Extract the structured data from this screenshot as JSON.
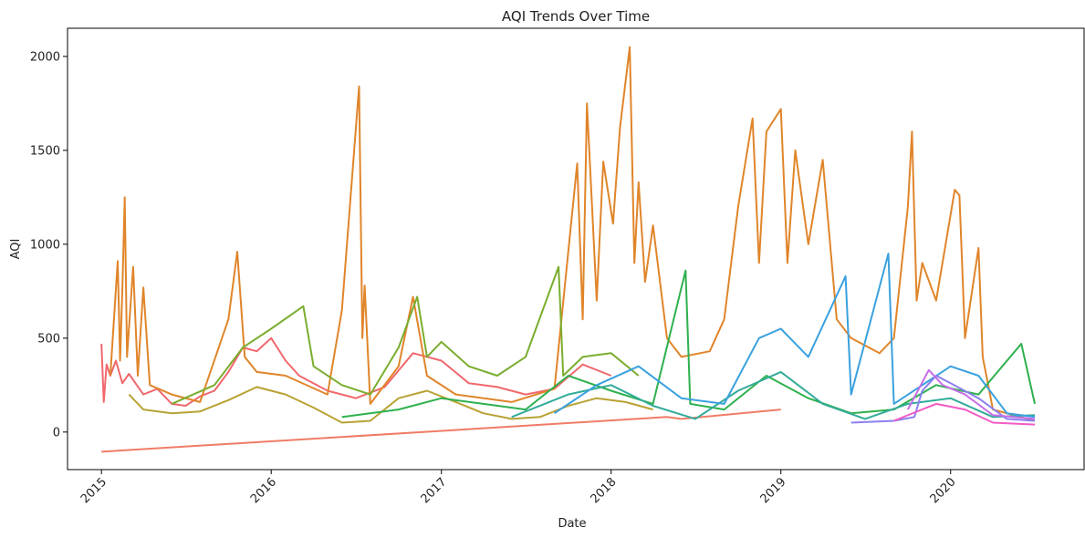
{
  "chart_data": {
    "type": "line",
    "title": "AQI Trends Over Time",
    "xlabel": "Date",
    "ylabel": "AQI",
    "x_ticks": [
      "2015",
      "2016",
      "2017",
      "2018",
      "2019",
      "2020"
    ],
    "y_ticks": [
      0,
      500,
      1000,
      1500,
      2000
    ],
    "xlim": [
      "2014-10-20",
      "2020-10-14"
    ],
    "ylim": [
      -200,
      2150
    ],
    "grid": false,
    "legend": "none",
    "series": [
      {
        "color": "#f0686d",
        "points": [
          [
            "2015-01-01",
            470
          ],
          [
            "2015-01-06",
            160
          ],
          [
            "2015-01-12",
            360
          ],
          [
            "2015-01-20",
            300
          ],
          [
            "2015-02-01",
            380
          ],
          [
            "2015-02-15",
            260
          ],
          [
            "2015-03-01",
            310
          ],
          [
            "2015-04-01",
            200
          ],
          [
            "2015-05-01",
            230
          ],
          [
            "2015-06-01",
            150
          ],
          [
            "2015-07-01",
            140
          ],
          [
            "2015-08-01",
            190
          ],
          [
            "2015-09-01",
            220
          ],
          [
            "2015-10-01",
            320
          ],
          [
            "2015-11-01",
            450
          ],
          [
            "2015-12-01",
            430
          ],
          [
            "2016-01-01",
            500
          ],
          [
            "2016-02-01",
            380
          ],
          [
            "2016-03-01",
            300
          ],
          [
            "2016-05-01",
            220
          ],
          [
            "2016-07-01",
            180
          ],
          [
            "2016-09-01",
            240
          ],
          [
            "2016-11-01",
            420
          ],
          [
            "2017-01-01",
            380
          ],
          [
            "2017-03-01",
            260
          ],
          [
            "2017-05-01",
            240
          ],
          [
            "2017-07-01",
            200
          ],
          [
            "2017-09-01",
            230
          ],
          [
            "2017-11-01",
            360
          ],
          [
            "2018-01-01",
            300
          ]
        ]
      },
      {
        "color": "#f07c66",
        "points": [
          [
            "2015-01-01",
            -105
          ],
          [
            "2018-05-01",
            80
          ],
          [
            "2018-06-01",
            70
          ],
          [
            "2019-01-01",
            120
          ]
        ]
      },
      {
        "color": "#e0852a",
        "points": [
          [
            "2015-01-20",
            300
          ],
          [
            "2015-02-05",
            910
          ],
          [
            "2015-02-10",
            380
          ],
          [
            "2015-02-15",
            760
          ],
          [
            "2015-02-20",
            1250
          ],
          [
            "2015-02-25",
            400
          ],
          [
            "2015-03-10",
            880
          ],
          [
            "2015-03-20",
            300
          ],
          [
            "2015-04-01",
            770
          ],
          [
            "2015-04-15",
            250
          ],
          [
            "2015-06-01",
            200
          ],
          [
            "2015-08-01",
            160
          ],
          [
            "2015-10-01",
            600
          ],
          [
            "2015-10-20",
            960
          ],
          [
            "2015-11-05",
            400
          ],
          [
            "2015-12-01",
            320
          ],
          [
            "2016-02-01",
            300
          ],
          [
            "2016-05-01",
            200
          ],
          [
            "2016-06-01",
            650
          ],
          [
            "2016-07-08",
            1840
          ],
          [
            "2016-07-15",
            500
          ],
          [
            "2016-07-20",
            780
          ],
          [
            "2016-08-01",
            150
          ],
          [
            "2016-10-01",
            350
          ],
          [
            "2016-11-01",
            720
          ],
          [
            "2016-12-01",
            300
          ],
          [
            "2017-02-01",
            200
          ],
          [
            "2017-06-01",
            160
          ],
          [
            "2017-09-01",
            230
          ],
          [
            "2017-10-20",
            1430
          ],
          [
            "2017-11-01",
            600
          ],
          [
            "2017-11-10",
            1750
          ],
          [
            "2017-12-01",
            700
          ],
          [
            "2017-12-15",
            1440
          ],
          [
            "2018-01-05",
            1110
          ],
          [
            "2018-01-20",
            1620
          ],
          [
            "2018-02-10",
            2050
          ],
          [
            "2018-02-20",
            900
          ],
          [
            "2018-03-01",
            1330
          ],
          [
            "2018-03-15",
            800
          ],
          [
            "2018-04-01",
            1100
          ],
          [
            "2018-05-01",
            500
          ],
          [
            "2018-06-01",
            400
          ],
          [
            "2018-08-01",
            430
          ],
          [
            "2018-09-01",
            600
          ],
          [
            "2018-10-01",
            1200
          ],
          [
            "2018-11-01",
            1670
          ],
          [
            "2018-11-15",
            900
          ],
          [
            "2018-12-01",
            1600
          ],
          [
            "2019-01-01",
            1720
          ],
          [
            "2019-01-15",
            900
          ],
          [
            "2019-02-01",
            1500
          ],
          [
            "2019-03-01",
            1000
          ],
          [
            "2019-04-01",
            1450
          ],
          [
            "2019-05-01",
            600
          ],
          [
            "2019-06-01",
            500
          ],
          [
            "2019-08-01",
            420
          ],
          [
            "2019-09-01",
            500
          ],
          [
            "2019-10-01",
            1200
          ],
          [
            "2019-10-10",
            1600
          ],
          [
            "2019-10-20",
            700
          ],
          [
            "2019-11-01",
            900
          ],
          [
            "2019-12-01",
            700
          ],
          [
            "2020-01-10",
            1290
          ],
          [
            "2020-01-20",
            1260
          ],
          [
            "2020-02-01",
            500
          ],
          [
            "2020-03-01",
            980
          ],
          [
            "2020-03-10",
            400
          ],
          [
            "2020-04-01",
            120
          ],
          [
            "2020-06-30",
            60
          ]
        ]
      },
      {
        "color": "#b8a234",
        "points": [
          [
            "2015-03-01",
            200
          ],
          [
            "2015-04-01",
            120
          ],
          [
            "2015-06-01",
            100
          ],
          [
            "2015-08-01",
            110
          ],
          [
            "2015-10-01",
            170
          ],
          [
            "2015-12-01",
            240
          ],
          [
            "2016-02-01",
            200
          ],
          [
            "2016-04-01",
            130
          ],
          [
            "2016-06-01",
            50
          ],
          [
            "2016-08-01",
            60
          ],
          [
            "2016-10-01",
            180
          ],
          [
            "2016-12-01",
            220
          ],
          [
            "2017-02-01",
            160
          ],
          [
            "2017-04-01",
            100
          ],
          [
            "2017-06-01",
            70
          ],
          [
            "2017-08-01",
            80
          ],
          [
            "2017-10-01",
            140
          ],
          [
            "2017-12-01",
            180
          ],
          [
            "2018-02-01",
            160
          ],
          [
            "2018-04-01",
            120
          ]
        ]
      },
      {
        "color": "#7aad2f",
        "points": [
          [
            "2015-06-01",
            150
          ],
          [
            "2015-09-01",
            250
          ],
          [
            "2015-11-01",
            450
          ],
          [
            "2016-01-01",
            550
          ],
          [
            "2016-03-10",
            670
          ],
          [
            "2016-04-01",
            350
          ],
          [
            "2016-06-01",
            250
          ],
          [
            "2016-08-01",
            200
          ],
          [
            "2016-10-01",
            450
          ],
          [
            "2016-11-10",
            720
          ],
          [
            "2016-12-01",
            400
          ],
          [
            "2017-01-01",
            480
          ],
          [
            "2017-03-01",
            350
          ],
          [
            "2017-05-01",
            300
          ],
          [
            "2017-07-01",
            400
          ],
          [
            "2017-09-10",
            880
          ],
          [
            "2017-09-20",
            300
          ],
          [
            "2017-11-01",
            400
          ],
          [
            "2018-01-01",
            420
          ],
          [
            "2018-03-01",
            300
          ]
        ]
      },
      {
        "color": "#2eb04e",
        "points": [
          [
            "2016-06-01",
            80
          ],
          [
            "2016-10-01",
            120
          ],
          [
            "2017-01-01",
            180
          ],
          [
            "2017-04-01",
            150
          ],
          [
            "2017-07-01",
            120
          ],
          [
            "2017-10-01",
            300
          ],
          [
            "2018-01-01",
            220
          ],
          [
            "2018-04-01",
            150
          ],
          [
            "2018-06-10",
            860
          ],
          [
            "2018-06-20",
            150
          ],
          [
            "2018-09-01",
            120
          ],
          [
            "2018-12-01",
            300
          ],
          [
            "2019-03-01",
            180
          ],
          [
            "2019-06-01",
            100
          ],
          [
            "2019-09-01",
            120
          ],
          [
            "2019-12-01",
            250
          ],
          [
            "2020-03-01",
            200
          ],
          [
            "2020-06-01",
            470
          ],
          [
            "2020-06-30",
            150
          ]
        ]
      },
      {
        "color": "#33ab9a",
        "points": [
          [
            "2017-06-01",
            80
          ],
          [
            "2017-10-01",
            200
          ],
          [
            "2018-01-01",
            250
          ],
          [
            "2018-04-01",
            140
          ],
          [
            "2018-07-01",
            70
          ],
          [
            "2018-10-01",
            220
          ],
          [
            "2019-01-01",
            320
          ],
          [
            "2019-04-01",
            150
          ],
          [
            "2019-07-01",
            70
          ],
          [
            "2019-10-01",
            150
          ],
          [
            "2020-01-01",
            180
          ],
          [
            "2020-04-01",
            80
          ],
          [
            "2020-06-30",
            90
          ]
        ]
      },
      {
        "color": "#3aa1de",
        "points": [
          [
            "2017-09-01",
            100
          ],
          [
            "2017-12-01",
            250
          ],
          [
            "2018-03-01",
            350
          ],
          [
            "2018-06-01",
            180
          ],
          [
            "2018-09-01",
            150
          ],
          [
            "2018-11-15",
            500
          ],
          [
            "2019-01-01",
            550
          ],
          [
            "2019-03-01",
            400
          ],
          [
            "2019-05-20",
            830
          ],
          [
            "2019-06-01",
            200
          ],
          [
            "2019-08-20",
            950
          ],
          [
            "2019-09-01",
            150
          ],
          [
            "2019-11-01",
            250
          ],
          [
            "2020-01-01",
            350
          ],
          [
            "2020-03-01",
            300
          ],
          [
            "2020-05-01",
            100
          ],
          [
            "2020-06-30",
            80
          ]
        ]
      },
      {
        "color": "#8b7ff0",
        "points": [
          [
            "2019-06-01",
            50
          ],
          [
            "2019-09-01",
            60
          ],
          [
            "2019-10-15",
            80
          ],
          [
            "2019-11-01",
            220
          ],
          [
            "2019-12-01",
            300
          ],
          [
            "2020-01-01",
            260
          ],
          [
            "2020-03-01",
            180
          ],
          [
            "2020-05-01",
            70
          ],
          [
            "2020-06-30",
            60
          ]
        ]
      },
      {
        "color": "#c66ee8",
        "points": [
          [
            "2019-10-01",
            120
          ],
          [
            "2019-11-15",
            330
          ],
          [
            "2019-12-15",
            250
          ],
          [
            "2020-02-01",
            200
          ],
          [
            "2020-04-01",
            90
          ],
          [
            "2020-06-30",
            70
          ]
        ]
      },
      {
        "color": "#f05bc4",
        "points": [
          [
            "2019-09-01",
            60
          ],
          [
            "2019-12-01",
            150
          ],
          [
            "2020-02-01",
            120
          ],
          [
            "2020-04-01",
            50
          ],
          [
            "2020-06-30",
            40
          ]
        ]
      }
    ]
  }
}
